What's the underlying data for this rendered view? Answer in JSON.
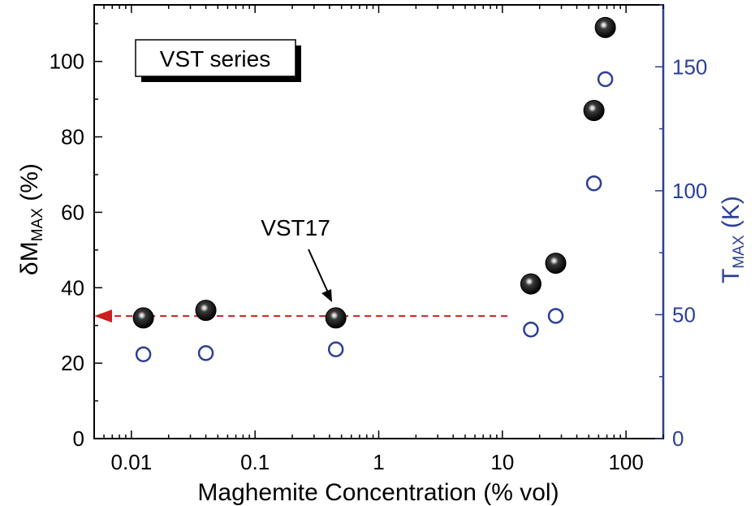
{
  "chart_data": {
    "type": "scatter",
    "x_scale": "log",
    "xlabel": "Maghemite Concentration (% vol)",
    "ylabel": {
      "main": "δM",
      "sub": "MAX",
      "unit": " (%)"
    },
    "y2label": {
      "main": "T",
      "sub": "MAX",
      "unit": " (K)"
    },
    "xlim": [
      0.005,
      200
    ],
    "ylim": [
      0,
      115
    ],
    "y2lim": [
      0,
      175
    ],
    "x_ticks": [
      0.01,
      0.1,
      1,
      10,
      100
    ],
    "x_tick_labels": [
      "0.01",
      "0.1",
      "1",
      "10",
      "100"
    ],
    "y_ticks": [
      0,
      20,
      40,
      60,
      80,
      100
    ],
    "y_tick_labels": [
      "0",
      "20",
      "40",
      "60",
      "80",
      "100"
    ],
    "y2_ticks": [
      0,
      50,
      100,
      150
    ],
    "y2_tick_labels": [
      "0",
      "50",
      "100",
      "150"
    ],
    "grid": false,
    "series": [
      {
        "axis": "left",
        "marker": "filled-sphere",
        "color": "#000000",
        "x": [
          0.0125,
          0.04,
          0.45,
          17,
          27,
          55,
          68
        ],
        "y": [
          32,
          34,
          32,
          41,
          46.5,
          87,
          109
        ]
      },
      {
        "axis": "right",
        "marker": "open-circle",
        "color": "#2b3f96",
        "x": [
          0.0125,
          0.04,
          0.45,
          17,
          27,
          55,
          68
        ],
        "y": [
          34,
          34.5,
          36,
          44,
          49.5,
          103,
          145
        ]
      }
    ],
    "legend_box": {
      "text": "VST series",
      "placement": "top-left"
    },
    "annotations": [
      {
        "text": "VST17",
        "target_x": 0.45,
        "target_y": 32
      }
    ],
    "reference_line": {
      "y": 32.5,
      "x_from": 11,
      "style": "dashed-arrow-left",
      "color": "#cc1f1f"
    },
    "colors": {
      "left_axis": "#000000",
      "right_axis": "#2b3f96",
      "reference_arrow": "#cc1f1f"
    }
  }
}
